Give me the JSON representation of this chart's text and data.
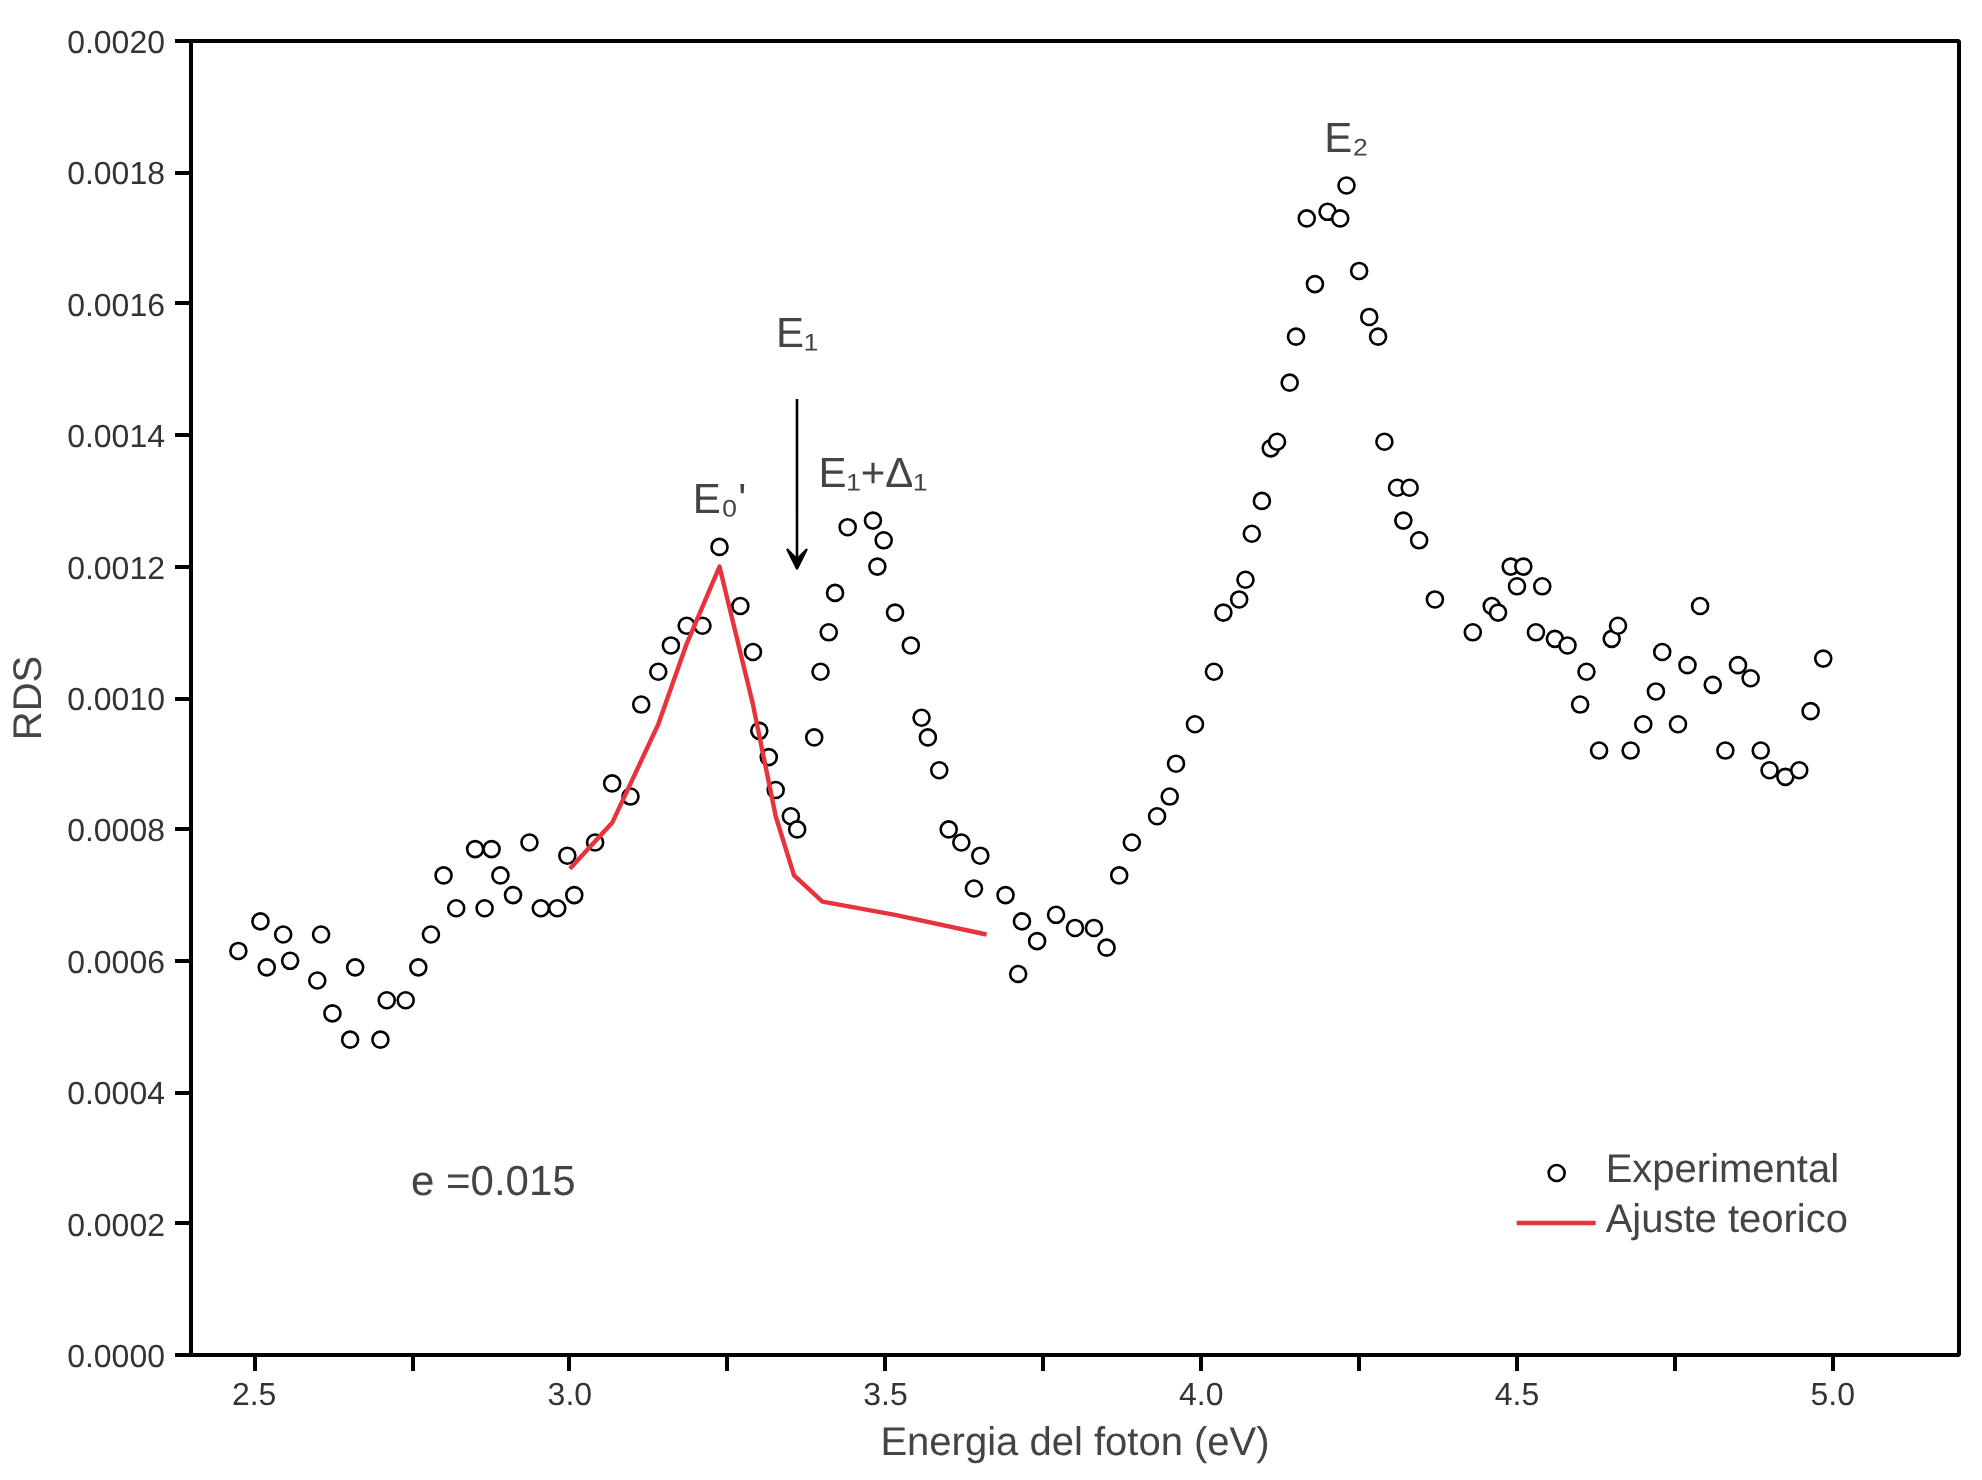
{
  "chart_data": {
    "type": "scatter",
    "xlabel": "Energia del foton (eV)",
    "ylabel": "RDS",
    "xlim": [
      2.4,
      5.2
    ],
    "ylim": [
      0,
      0.002
    ],
    "xticks": [
      2.5,
      {
        "value": 2.75,
        "label": null
      },
      {
        "value": 3.0,
        "label": "3.0"
      },
      {
        "value": 3.25,
        "label": null
      },
      3.5,
      {
        "value": 3.75,
        "label": null
      },
      {
        "value": 4.0,
        "label": "4.0"
      },
      {
        "value": 4.25,
        "label": null
      },
      4.5,
      {
        "value": 4.75,
        "label": null
      },
      {
        "value": 5.0,
        "label": "5.0"
      }
    ],
    "yticks": [
      {
        "value": 0,
        "label": "0.0000"
      },
      {
        "value": 0.0002,
        "label": "0.0002"
      },
      {
        "value": 0.0004,
        "label": "0.0004"
      },
      {
        "value": 0.0006,
        "label": "0.0006"
      },
      {
        "value": 0.0008,
        "label": "0.0008"
      },
      {
        "value": 0.001,
        "label": "0.0010"
      },
      {
        "value": 0.0012,
        "label": "0.0012"
      },
      {
        "value": 0.0014,
        "label": "0.0014"
      },
      {
        "value": 0.0016,
        "label": "0.0016"
      },
      {
        "value": 0.0018,
        "label": "0.0018"
      },
      {
        "value": 0.002,
        "label": "0.0020"
      }
    ],
    "grid": false,
    "legend": "bottom right",
    "series": [
      {
        "name": "Experimental",
        "marker": "circle",
        "color": "#000000",
        "x": [
          2.475,
          2.51,
          2.52,
          2.546,
          2.557,
          2.6,
          2.606,
          2.624,
          2.652,
          2.66,
          2.7,
          2.71,
          2.74,
          2.76,
          2.78,
          2.8,
          2.82,
          2.85,
          2.865,
          2.876,
          2.89,
          2.91,
          2.936,
          2.954,
          2.98,
          2.996,
          3.007,
          3.04,
          3.067,
          3.096,
          3.113,
          3.14,
          3.16,
          3.185,
          3.21,
          3.237,
          3.27,
          3.29,
          3.3,
          3.315,
          3.326,
          3.35,
          3.36,
          3.387,
          3.397,
          3.41,
          3.42,
          3.44,
          3.48,
          3.487,
          3.497,
          3.515,
          3.54,
          3.557,
          3.567,
          3.585,
          3.6,
          3.62,
          3.64,
          3.65,
          3.69,
          3.71,
          3.716,
          3.74,
          3.77,
          3.8,
          3.83,
          3.85,
          3.87,
          3.89,
          3.93,
          3.95,
          3.96,
          3.99,
          4.02,
          4.035,
          4.06,
          4.07,
          4.08,
          4.096,
          4.11,
          4.12,
          4.14,
          4.15,
          4.167,
          4.18,
          4.2,
          4.22,
          4.23,
          4.25,
          4.266,
          4.28,
          4.29,
          4.31,
          4.32,
          4.33,
          4.345,
          4.37,
          4.43,
          4.46,
          4.47,
          4.49,
          4.5,
          4.51,
          4.53,
          4.54,
          4.56,
          4.58,
          4.6,
          4.61,
          4.63,
          4.65,
          4.66,
          4.68,
          4.7,
          4.72,
          4.73,
          4.755,
          4.77,
          4.79,
          4.81,
          4.83,
          4.85,
          4.87,
          4.886,
          4.9,
          4.925,
          4.947,
          4.965,
          4.985
        ],
        "values": [
          0.000615,
          0.00066,
          0.00059,
          0.00064,
          0.0006,
          0.00057,
          0.00064,
          0.00052,
          0.00048,
          0.00059,
          0.00048,
          0.00054,
          0.00054,
          0.00059,
          0.00064,
          0.00073,
          0.00068,
          0.00077,
          0.00068,
          0.00077,
          0.00073,
          0.0007,
          0.00078,
          0.00068,
          0.00068,
          0.00076,
          0.0007,
          0.00078,
          0.00087,
          0.00085,
          0.00099,
          0.00104,
          0.00108,
          0.00111,
          0.00111,
          0.00123,
          0.00114,
          0.00107,
          0.00095,
          0.00091,
          0.00086,
          0.00082,
          0.0008,
          0.00094,
          0.00104,
          0.0011,
          0.00116,
          0.00126,
          0.00127,
          0.0012,
          0.00124,
          0.00113,
          0.00108,
          0.00097,
          0.00094,
          0.00089,
          0.0008,
          0.00078,
          0.00071,
          0.00076,
          0.0007,
          0.00058,
          0.00066,
          0.00063,
          0.00067,
          0.00065,
          0.00065,
          0.00062,
          0.00073,
          0.00078,
          0.00082,
          0.00085,
          0.0009,
          0.00096,
          0.00104,
          0.00113,
          0.00115,
          0.00118,
          0.00125,
          0.0013,
          0.00138,
          0.00139,
          0.00148,
          0.00155,
          0.00173,
          0.00163,
          0.00174,
          0.00173,
          0.00178,
          0.00165,
          0.00158,
          0.00155,
          0.00139,
          0.00132,
          0.00127,
          0.00132,
          0.00124,
          0.00115,
          0.0011,
          0.00114,
          0.00113,
          0.0012,
          0.00117,
          0.0012,
          0.0011,
          0.00117,
          0.00109,
          0.00108,
          0.00099,
          0.00104,
          0.00092,
          0.00109,
          0.00111,
          0.00092,
          0.00096,
          0.00101,
          0.00107,
          0.00096,
          0.00105,
          0.00114,
          0.00102,
          0.00092,
          0.00105,
          0.00103,
          0.00092,
          0.00089,
          0.00088,
          0.00089,
          0.00098,
          0.00106
        ]
      },
      {
        "name": "Ajuste teorico",
        "type": "line",
        "color": "#e8323c",
        "x": [
          3.0,
          3.067,
          3.14,
          3.184,
          3.237,
          3.29,
          3.326,
          3.355,
          3.4,
          3.515,
          3.66
        ],
        "values": [
          0.00074,
          0.00081,
          0.00096,
          0.00108,
          0.0012,
          0.00099,
          0.00082,
          0.00073,
          0.00069,
          0.00067,
          0.00064
        ]
      }
    ],
    "annotations": [
      {
        "text": "E₀'",
        "x": 3.237,
        "y": 0.00123
      },
      "E₁",
      {
        "text": "E₁+Δ₁",
        "x": 3.48,
        "y": 0.00127
      },
      {
        "text": "E₂",
        "x": 4.23,
        "y": 0.00178
      },
      "e =0.015"
    ]
  }
}
